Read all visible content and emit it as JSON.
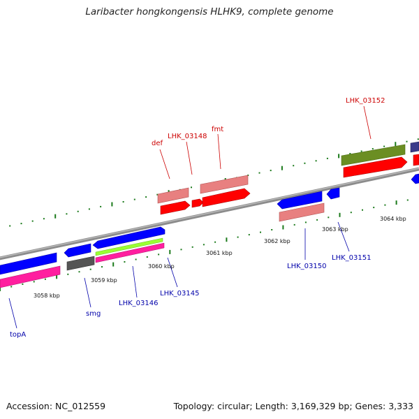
{
  "title": "Laribacter hongkongensis HLHK9, complete genome",
  "footer": {
    "accession": "Accession: NC_012559",
    "topology": "Topology: circular; Length: 3,169,329 bp; Genes: 3,333"
  },
  "colors": {
    "backbone": "#8c8c8c",
    "forward_gene": "#ff0000",
    "forward_feature": "#e88080",
    "reverse_gene": "#0000ff",
    "reverse_feature": "#ff1f9f",
    "rna": "#9aff33",
    "other": "#555555",
    "olive": "#6b8e23",
    "navy": "#3a3a8a",
    "tick": "#1b7a1b",
    "label_forward": "#cc0000",
    "label_reverse": "#0000aa"
  },
  "ruler": [
    {
      "label": "3058 kbp"
    },
    {
      "label": "3059 kbp"
    },
    {
      "label": "3060 kbp"
    },
    {
      "label": "3061 kbp"
    },
    {
      "label": "3062 kbp"
    },
    {
      "label": "3063 kbp"
    },
    {
      "label": "3064 kbp"
    }
  ],
  "gene_labels": [
    {
      "name": "def",
      "strand": "forward"
    },
    {
      "name": "LHK_03148",
      "strand": "forward"
    },
    {
      "name": "fmt",
      "strand": "forward"
    },
    {
      "name": "LHK_03152",
      "strand": "forward"
    },
    {
      "name": "topA",
      "strand": "reverse"
    },
    {
      "name": "smg",
      "strand": "reverse"
    },
    {
      "name": "LHK_03146",
      "strand": "reverse"
    },
    {
      "name": "LHK_03145",
      "strand": "reverse"
    },
    {
      "name": "LHK_03150",
      "strand": "reverse"
    },
    {
      "name": "LHK_03151",
      "strand": "reverse"
    }
  ]
}
